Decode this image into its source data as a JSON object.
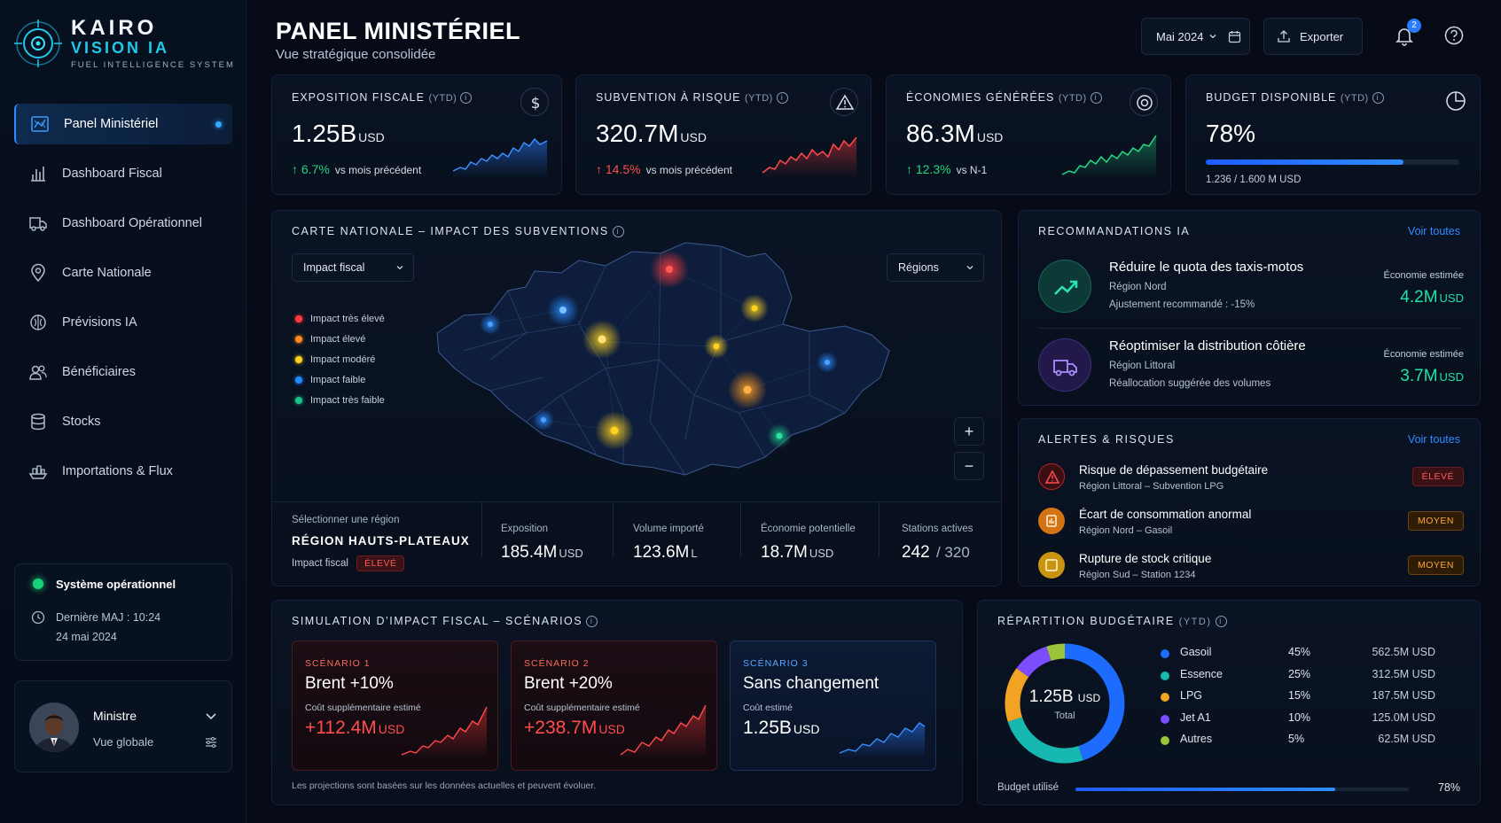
{
  "brand": {
    "name": "KAIRO",
    "name2": "VISION IA",
    "tagline": "FUEL INTELLIGENCE SYSTEM"
  },
  "sidebar": {
    "items": [
      {
        "label": "Panel Ministériel",
        "icon": "map-icon",
        "active": true
      },
      {
        "label": "Dashboard Fiscal",
        "icon": "bar-chart-icon"
      },
      {
        "label": "Dashboard Opérationnel",
        "icon": "truck-icon"
      },
      {
        "label": "Carte Nationale",
        "icon": "location-pin-icon"
      },
      {
        "label": "Prévisions IA",
        "icon": "brain-icon"
      },
      {
        "label": "Bénéficiaires",
        "icon": "users-icon"
      },
      {
        "label": "Stocks",
        "icon": "database-icon"
      },
      {
        "label": "Importations & Flux",
        "icon": "ship-icon"
      }
    ],
    "system": {
      "status": "Système opérationnel",
      "updated": "Dernière MAJ : 10:24",
      "date": "24 mai 2024"
    },
    "user": {
      "name": "Ministre",
      "role": "Vue globale"
    }
  },
  "header": {
    "title": "PANEL MINISTÉRIEL",
    "subtitle": "Vue stratégique consolidée",
    "period": "Mai 2024",
    "export_label": "Exporter",
    "notifications": "2"
  },
  "kpis": [
    {
      "label": "EXPOSITION FISCALE",
      "suffix": "(YTD)",
      "value": "1.25B",
      "unit": "USD",
      "delta": "↑ 6.7%",
      "compare": "vs mois précédent",
      "color": "#22d67f",
      "icon": "dollar-icon"
    },
    {
      "label": "SUBVENTION À RISQUE",
      "suffix": "(YTD)",
      "value": "320.7M",
      "unit": "USD",
      "delta": "↑ 14.5%",
      "compare": "vs mois précédent",
      "color": "#ff4d4d",
      "icon": "warning-icon"
    },
    {
      "label": "ÉCONOMIES GÉNÉRÉES",
      "suffix": "(YTD)",
      "value": "86.3M",
      "unit": "USD",
      "delta": "↑ 12.3%",
      "compare": "vs N-1",
      "color": "#22d67f",
      "icon": "target-icon"
    },
    {
      "label": "BUDGET DISPONIBLE",
      "suffix": "(YTD)",
      "value": "78%",
      "detail": "1.236 / 1.600 M USD",
      "progress": 0.78,
      "icon": "pie-icon"
    }
  ],
  "map": {
    "title": "CARTE NATIONALE – IMPACT DES SUBVENTIONS",
    "filter": "Impact fiscal",
    "scope": "Régions",
    "legend": [
      {
        "label": "Impact très élevé",
        "color": "#ff3b3b"
      },
      {
        "label": "Impact élevé",
        "color": "#ff8a1f"
      },
      {
        "label": "Impact modéré",
        "color": "#ffd21f"
      },
      {
        "label": "Impact faible",
        "color": "#1f8bff"
      },
      {
        "label": "Impact très faible",
        "color": "#17c48a"
      }
    ],
    "zoom_in": "+",
    "zoom_out": "−",
    "selection": {
      "label": "Sélectionner une région",
      "region": "RÉGION HAUTS-PLATEAUX",
      "impact_label": "Impact fiscal",
      "impact_value": "ÉLEVÉ"
    },
    "stats": [
      {
        "label": "Exposition",
        "value": "185.4M",
        "unit": "USD"
      },
      {
        "label": "Volume importé",
        "value": "123.6M",
        "unit": "L"
      },
      {
        "label": "Économie potentielle",
        "value": "18.7M",
        "unit": "USD"
      },
      {
        "label": "Stations actives",
        "value": "242",
        "unit": "/ 320"
      }
    ]
  },
  "recommendations": {
    "title": "RECOMMANDATIONS IA",
    "link": "Voir toutes",
    "items": [
      {
        "title": "Réduire le quota des taxis-motos",
        "region": "Région Nord",
        "detail": "Ajustement recommandé : -15%",
        "est_label": "Économie estimée",
        "value": "4.2M",
        "unit": "USD"
      },
      {
        "title": "Réoptimiser la distribution côtière",
        "region": "Région Littoral",
        "detail": "Réallocation suggérée des volumes",
        "est_label": "Économie estimée",
        "value": "3.7M",
        "unit": "USD"
      }
    ]
  },
  "alerts": {
    "title": "ALERTES & RISQUES",
    "link": "Voir toutes",
    "items": [
      {
        "title": "Risque de dépassement budgétaire",
        "sub": "Région Littoral – Subvention LPG",
        "level": "ÉLEVÉ"
      },
      {
        "title": "Écart de consommation anormal",
        "sub": "Région Nord – Gasoil",
        "level": "MOYEN"
      },
      {
        "title": "Rupture de stock critique",
        "sub": "Région Sud – Station 1234",
        "level": "MOYEN"
      }
    ]
  },
  "simulation": {
    "title": "SIMULATION D’IMPACT FISCAL – SCÉNARIOS",
    "footnote": "Les projections sont basées sur les données actuelles et peuvent évoluer.",
    "scenarios": [
      {
        "tag": "SCÉNARIO 1",
        "title": "Brent +10%",
        "cost_label": "Coût supplémentaire estimé",
        "value": "+112.4M",
        "unit": "USD"
      },
      {
        "tag": "SCÉNARIO 2",
        "title": "Brent +20%",
        "cost_label": "Coût supplémentaire estimé",
        "value": "+238.7M",
        "unit": "USD"
      },
      {
        "tag": "SCÉNARIO 3",
        "title": "Sans changement",
        "cost_label": "Coût estimé",
        "value": "1.25B",
        "unit": "USD"
      }
    ]
  },
  "budget": {
    "title": "RÉPARTITION BUDGÉTAIRE",
    "suffix": "(YTD)",
    "total": "1.25B",
    "total_unit": "USD",
    "total_label": "Total",
    "used_label": "Budget utilisé",
    "used_pct": "78%",
    "used": 0.78,
    "chart_data": {
      "type": "pie",
      "categories": [
        "Gasoil",
        "Essence",
        "LPG",
        "Jet A1",
        "Autres"
      ],
      "values": [
        45,
        25,
        15,
        10,
        5
      ],
      "amounts": [
        "562.5M USD",
        "312.5M USD",
        "187.5M USD",
        "125.0M USD",
        "62.5M USD"
      ],
      "percents": [
        "45%",
        "25%",
        "15%",
        "10%",
        "5%"
      ],
      "colors": [
        "#1e6bff",
        "#16b8b0",
        "#f2a324",
        "#7b4dff",
        "#9bc43a"
      ]
    }
  }
}
